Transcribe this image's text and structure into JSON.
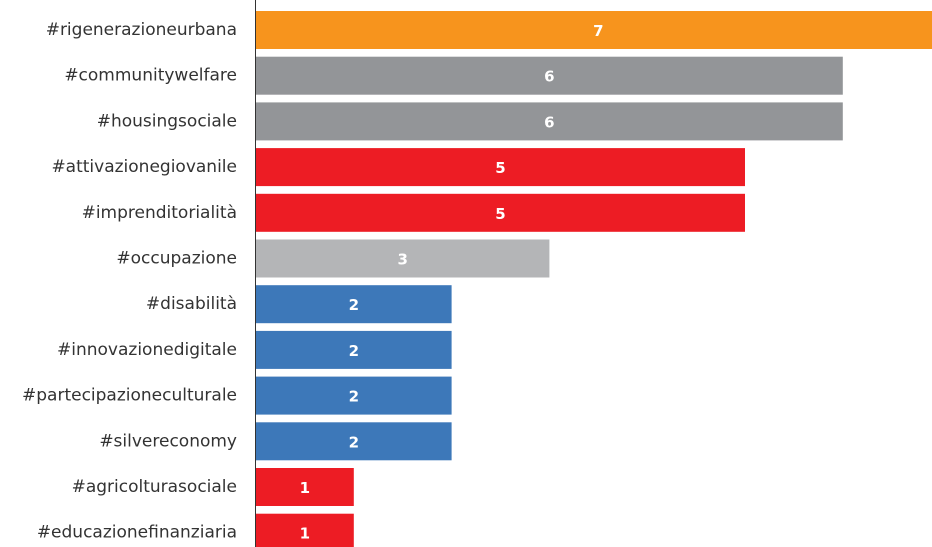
{
  "chart_data": {
    "type": "bar",
    "orientation": "horizontal",
    "categories": [
      "#rigenerazioneurbana",
      "#communitywelfare",
      "#housingsociale",
      "#attivazionegiovanile",
      "#imprenditorialità",
      "#occupazione",
      "#disabilità",
      "#innovazionedigitale",
      "#partecipazioneculturale",
      "#silvereconomy",
      "#agricolturasociale",
      "#educazionefinanziaria"
    ],
    "values": [
      7,
      6,
      6,
      5,
      5,
      3,
      2,
      2,
      2,
      2,
      1,
      1
    ],
    "bar_colors": [
      "#f7941d",
      "#939598",
      "#939598",
      "#ed1c24",
      "#ed1c24",
      "#b4b5b7",
      "#3d78b9",
      "#3d78b9",
      "#3d78b9",
      "#3d78b9",
      "#ed1c24",
      "#ed1c24"
    ],
    "xlim": [
      0,
      7
    ],
    "grid": false,
    "axis_color": "#333333"
  }
}
